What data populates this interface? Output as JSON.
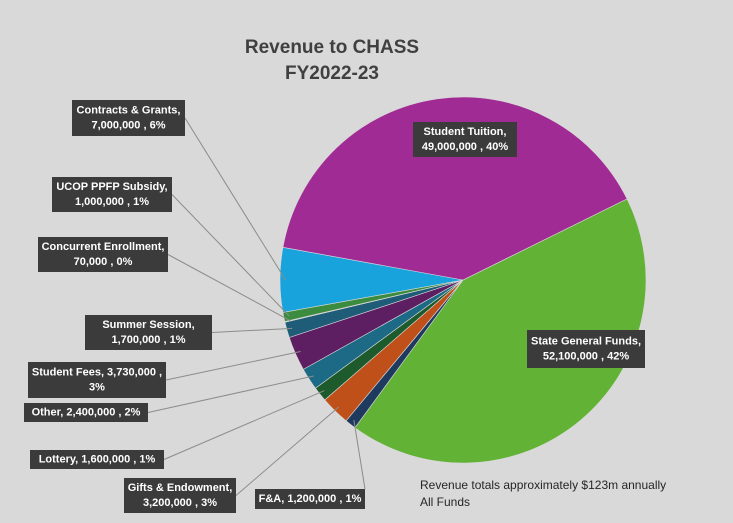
{
  "chart_data": {
    "type": "pie",
    "title": "Revenue to CHASS",
    "subtitle": "FY2022-23",
    "annotation": [
      "Revenue totals approximately $123m annually",
      "All Funds"
    ],
    "values": [
      52100000,
      1200000,
      3200000,
      1600000,
      2400000,
      3730000,
      1700000,
      70000,
      1000000,
      7000000,
      49000000
    ],
    "labels": [
      [
        "State General Funds,",
        "52,100,000 , 42%"
      ],
      [
        "F&A,  1,200,000 , 1%"
      ],
      [
        "Gifts & Endowment,",
        "3,200,000 , 3%"
      ],
      [
        "Lottery,  1,600,000 , 1%"
      ],
      [
        "Other,  2,400,000 , 2%"
      ],
      [
        "Student Fees,  3,730,000 ,",
        "3%"
      ],
      [
        "Summer Session,",
        "1,700,000 , 1%"
      ],
      [
        "Concurrent Enrollment,",
        "70,000 , 0%"
      ],
      [
        "UCOP PPFP Subsidy,",
        "1,000,000 , 1%"
      ],
      [
        "Contracts & Grants,",
        "7,000,000 , 6%"
      ],
      [
        "Student Tuition,",
        "49,000,000 , 40%"
      ]
    ],
    "colors": [
      "#62b236",
      "#1f3a5f",
      "#c0501a",
      "#1d5a2c",
      "#1d6a86",
      "#5e1f62",
      "#1e5c78",
      "#2e6f3a",
      "#3b8c3e",
      "#19a3dc",
      "#a12b95"
    ]
  }
}
